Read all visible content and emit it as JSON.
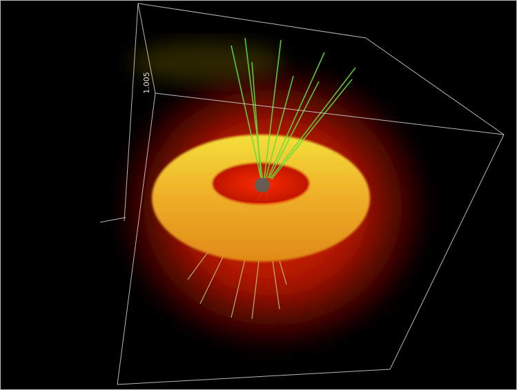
{
  "scene": {
    "axis_label": "1.005"
  }
}
